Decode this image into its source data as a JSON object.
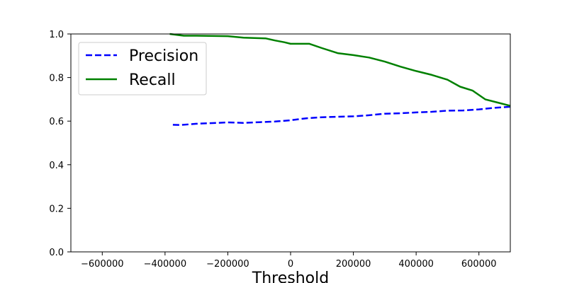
{
  "chart_data": {
    "type": "line",
    "title": "",
    "xlabel": "Threshold",
    "ylabel": "",
    "xlim": [
      -700000,
      700000
    ],
    "ylim": [
      0,
      1
    ],
    "x_ticks": [
      -600000,
      -400000,
      -200000,
      0,
      200000,
      400000,
      600000
    ],
    "x_tick_labels": [
      "−600000",
      "−400000",
      "−200000",
      "0",
      "200000",
      "400000",
      "600000"
    ],
    "y_ticks": [
      0,
      0.2,
      0.4,
      0.6,
      0.8,
      1.0
    ],
    "y_tick_labels": [
      "0.0",
      "0.2",
      "0.4",
      "0.6",
      "0.8",
      "1.0"
    ],
    "grid": false,
    "legend_position": "top-left",
    "series": [
      {
        "name": "Precision",
        "color": "#0000ff",
        "style": "dashed",
        "x": [
          -375000,
          -350000,
          -300000,
          -250000,
          -200000,
          -150000,
          -100000,
          -50000,
          0,
          50000,
          100000,
          150000,
          200000,
          250000,
          300000,
          350000,
          400000,
          450000,
          500000,
          550000,
          600000,
          650000,
          700000
        ],
        "y": [
          0.583,
          0.582,
          0.588,
          0.591,
          0.594,
          0.592,
          0.595,
          0.598,
          0.604,
          0.613,
          0.618,
          0.62,
          0.622,
          0.627,
          0.634,
          0.636,
          0.64,
          0.643,
          0.648,
          0.649,
          0.654,
          0.661,
          0.666
        ]
      },
      {
        "name": "Recall",
        "color": "#008000",
        "style": "solid",
        "x": [
          -385000,
          -340000,
          -300000,
          -200000,
          -150000,
          -80000,
          -50000,
          -20000,
          0,
          60000,
          100000,
          150000,
          200000,
          250000,
          300000,
          350000,
          400000,
          450000,
          500000,
          540000,
          580000,
          620000,
          660000,
          700000
        ],
        "y": [
          1.0,
          0.992,
          0.992,
          0.99,
          0.983,
          0.98,
          0.97,
          0.962,
          0.955,
          0.955,
          0.935,
          0.912,
          0.903,
          0.892,
          0.873,
          0.85,
          0.83,
          0.812,
          0.79,
          0.758,
          0.74,
          0.7,
          0.685,
          0.67
        ]
      }
    ]
  }
}
